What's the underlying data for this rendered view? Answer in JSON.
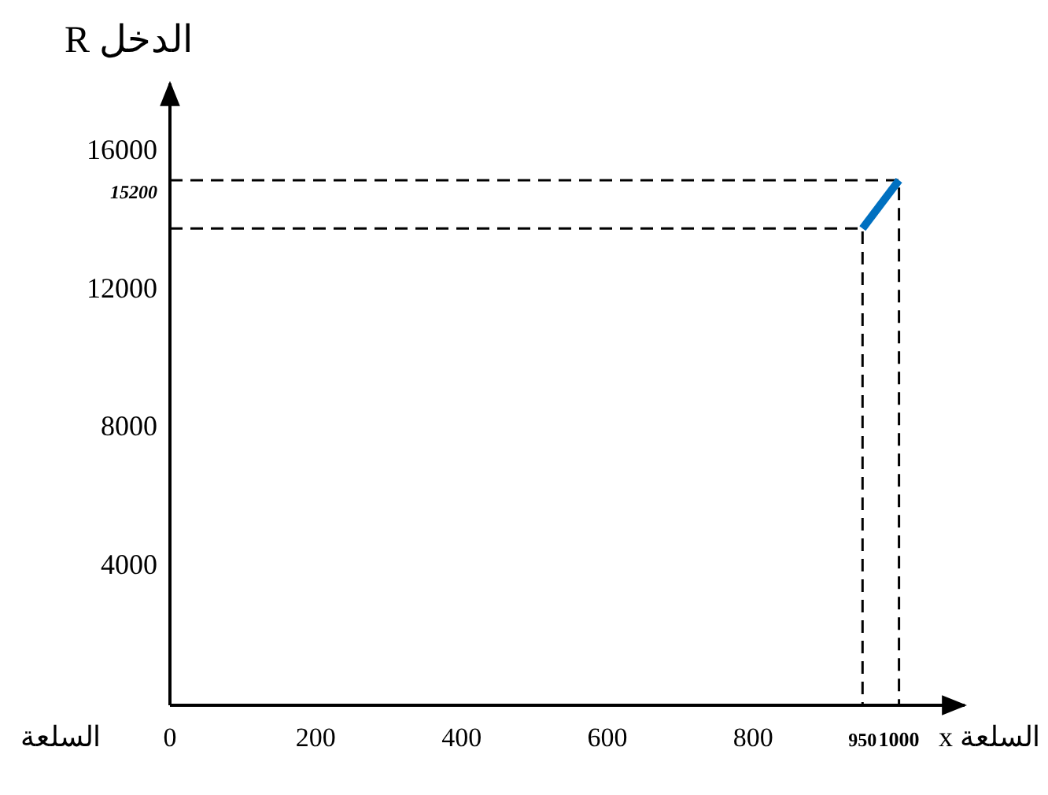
{
  "chart_data": {
    "type": "line",
    "xlabel": "السلعة x",
    "ylabel": "الدخل R",
    "x": [
      950,
      1000
    ],
    "series": [
      {
        "color": "#0070c0",
        "values": [
          13800,
          15200
        ]
      },
      {
        "color": "#000000",
        "line_style": "dashed",
        "x": [
          0,
          950,
          950
        ],
        "values": [
          13800,
          13800,
          0
        ]
      },
      {
        "color": "#000000",
        "line_style": "dashed",
        "x": [
          0,
          1000,
          1000
        ],
        "values": [
          15200,
          15200,
          0
        ]
      }
    ],
    "xlim": [
      0,
      1090
    ],
    "ylim": [
      0,
      18000
    ],
    "xticks": [
      0,
      200,
      400,
      600,
      800,
      950,
      1000
    ],
    "yticks": [
      4000,
      8000,
      12000,
      16000
    ],
    "annotations": [
      "السلعة",
      {
        "text": "15200",
        "x": 0,
        "y": 15200
      }
    ],
    "marker": "none",
    "line_style": "solid",
    "grid": false
  }
}
